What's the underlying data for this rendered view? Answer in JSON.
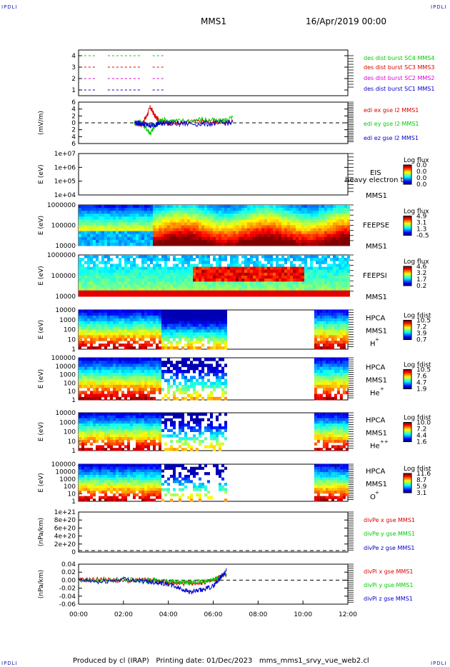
{
  "header": {
    "corner_label": "IPDLI",
    "mission": "MMS1",
    "datetime": "16/Apr/2019 00:00"
  },
  "footer": {
    "produced_by": "Produced by cl (IRAP)",
    "printing_date": "Printing date: 01/Dec/2023",
    "script_name": "mms_mms1_srvy_vue_web2.cl"
  },
  "colors": {
    "sc1": "#0000cc",
    "sc2": "#dd00dd",
    "sc3": "#dd0000",
    "sc4": "#00cc00",
    "x": "#dd0000",
    "y": "#00cc00",
    "z": "#0000cc"
  },
  "chart_data": [
    {
      "type": "line",
      "panel": "burst",
      "ylim": [
        0.5,
        4.5
      ],
      "yticks": [
        "1",
        "2",
        "3",
        "4"
      ],
      "series": [
        {
          "name": "des dist burst SC1 MMS1",
          "level": 1,
          "x": [
            0.25,
            0.7,
            1.3,
            2.7,
            3.3,
            3.8
          ]
        },
        {
          "name": "des dist burst SC2 MMS2",
          "level": 2,
          "x": [
            0.25,
            0.7,
            1.3,
            2.7,
            3.3,
            3.8
          ]
        },
        {
          "name": "des dist burst SC3 MMS3",
          "level": 3,
          "x": [
            0.25,
            0.7,
            1.3,
            2.7,
            3.3,
            3.8
          ]
        },
        {
          "name": "des dist burst SC4 MMS4",
          "level": 4,
          "x": [
            0.25,
            0.7,
            1.3,
            2.7,
            3.3,
            3.8
          ]
        }
      ]
    },
    {
      "type": "line",
      "panel": "edi",
      "ylabel": "(mV/m)",
      "ylim": [
        -6,
        6
      ],
      "yticks": [
        "6",
        "4",
        "2",
        "0",
        "2",
        "4",
        "6"
      ],
      "series": [
        {
          "name": "edi ex gse l2 MMS1",
          "x": [
            2.5,
            2.8,
            3.0,
            3.2,
            3.4,
            3.6,
            3.8,
            4.5,
            5.5,
            6.3,
            6.9
          ],
          "y": [
            0,
            -0.5,
            1.5,
            4.5,
            2.0,
            0.5,
            0.2,
            -0.3,
            0.5,
            0.2,
            0.3
          ]
        },
        {
          "name": "edi ey gse l2 MMS1",
          "x": [
            2.5,
            2.8,
            3.0,
            3.2,
            3.4,
            3.6,
            3.8,
            4.5,
            5.5,
            6.3,
            6.9
          ],
          "y": [
            0,
            0.3,
            -1.5,
            -3.0,
            -1.0,
            0.5,
            0.8,
            0.5,
            1.0,
            0.5,
            1.5
          ]
        },
        {
          "name": "edi ez gse l2 MMS1",
          "x": [
            2.5,
            2.8,
            3.0,
            3.2,
            3.4,
            3.6,
            3.8,
            4.5,
            5.5,
            6.3,
            6.9
          ],
          "y": [
            0,
            -0.2,
            -0.5,
            -0.8,
            -0.5,
            -0.2,
            0,
            -0.2,
            -0.3,
            -0.1,
            0
          ]
        }
      ],
      "reference_line": 0
    },
    {
      "type": "heatmap",
      "panel": "eis",
      "ylabel": "E (eV)",
      "ylim": [
        10000,
        10000000
      ],
      "yticks": [
        "1e+07",
        "1e+06",
        "1e+05",
        "1e+04"
      ],
      "instrument": "EIS",
      "species": "heavy electron to",
      "spacecraft": "MMS1",
      "colorbar_title": "Log flux",
      "colorbar_ticks": [
        "0.0",
        "0.0",
        "0.0",
        "0.0"
      ]
    },
    {
      "type": "heatmap",
      "panel": "feepse",
      "ylabel": "E (eV)",
      "ylim": [
        10000,
        1000000
      ],
      "yticks": [
        "1000000",
        "100000",
        "10000"
      ],
      "instrument": "FEEPSE",
      "spacecraft": "MMS1",
      "colorbar_title": "Log flux",
      "colorbar_ticks": [
        "4.9",
        "3.1",
        "1.3",
        "-0.5"
      ],
      "coverage": [
        [
          0,
          12
        ]
      ]
    },
    {
      "type": "heatmap",
      "panel": "feepsi",
      "ylabel": "E (eV)",
      "ylim": [
        10000,
        1000000
      ],
      "yticks": [
        "1000000",
        "100000",
        "10000"
      ],
      "instrument": "FEEPSI",
      "spacecraft": "MMS1",
      "colorbar_title": "Log flux",
      "colorbar_ticks": [
        "4.6",
        "3.2",
        "1.7",
        "0.2"
      ],
      "coverage": [
        [
          0,
          12
        ]
      ]
    },
    {
      "type": "heatmap",
      "panel": "hpca_h",
      "ylabel": "E (eV)",
      "ylim": [
        1,
        10000
      ],
      "yticks": [
        "10000",
        "1000",
        "100",
        "10",
        "1"
      ],
      "instrument": "HPCA",
      "spacecraft": "MMS1",
      "species_base": "H",
      "species_charge": "+",
      "colorbar_title": "Log fdist",
      "colorbar_ticks": [
        "10.5",
        "7.2",
        "3.9",
        "0.7"
      ],
      "coverage": [
        [
          0,
          6.6
        ],
        [
          10.5,
          12
        ]
      ]
    },
    {
      "type": "heatmap",
      "panel": "hpca_he",
      "ylabel": "E (eV)",
      "ylim": [
        1,
        100000
      ],
      "yticks": [
        "100000",
        "10000",
        "1000",
        "100",
        "10",
        "1"
      ],
      "instrument": "HPCA",
      "spacecraft": "MMS1",
      "species_base": "He",
      "species_charge": "+",
      "colorbar_title": "Log fdist",
      "colorbar_ticks": [
        "10.5",
        "7.6",
        "4.7",
        "1.9"
      ],
      "coverage": [
        [
          0,
          6.6
        ],
        [
          10.5,
          12
        ]
      ]
    },
    {
      "type": "heatmap",
      "panel": "hpca_hepp",
      "ylabel": "E (eV)",
      "ylim": [
        1,
        10000
      ],
      "yticks": [
        "10000",
        "1000",
        "100",
        "10",
        "1"
      ],
      "instrument": "HPCA",
      "spacecraft": "MMS1",
      "species_base": "He",
      "species_charge": "++",
      "colorbar_title": "Log fdist",
      "colorbar_ticks": [
        "10.0",
        "7.2",
        "4.4",
        "1.6"
      ],
      "coverage": [
        [
          0,
          6.6
        ],
        [
          10.5,
          12
        ]
      ]
    },
    {
      "type": "heatmap",
      "panel": "hpca_o",
      "ylabel": "E (eV)",
      "ylim": [
        1,
        100000
      ],
      "yticks": [
        "100000",
        "10000",
        "1000",
        "100",
        "10",
        "1"
      ],
      "instrument": "HPCA",
      "spacecraft": "MMS1",
      "species_base": "O",
      "species_charge": "+",
      "colorbar_title": "Log fdist",
      "colorbar_ticks": [
        "11.6",
        "8.7",
        "5.9",
        "3.1"
      ],
      "coverage": [
        [
          0,
          6.6
        ],
        [
          10.5,
          12
        ]
      ]
    },
    {
      "type": "line",
      "panel": "divpe",
      "ylabel": "(nPa/km)",
      "ylim": [
        0,
        1e+21
      ],
      "yticks": [
        "1e+21",
        "8e+20",
        "6e+20",
        "4e+20",
        "2e+20",
        "0"
      ],
      "series": [
        {
          "name": "divPe x gse MMS1"
        },
        {
          "name": "divPe y gse MMS1"
        },
        {
          "name": "divPe z gse MMS1"
        }
      ],
      "reference_line": 0
    },
    {
      "type": "line",
      "panel": "divpi",
      "ylabel": "(nPa/km)",
      "ylim": [
        -0.06,
        0.04
      ],
      "yticks": [
        "0.04",
        "0.02",
        "0.00",
        "-0.02",
        "-0.04",
        "-0.06"
      ],
      "series": [
        {
          "name": "divPi x gse MMS1",
          "x": [
            0,
            1,
            2,
            3,
            3.5,
            4,
            4.5,
            5,
            5.5,
            6,
            6.3,
            6.6
          ],
          "y": [
            0,
            0.002,
            -0.002,
            0.001,
            -0.002,
            -0.006,
            -0.008,
            -0.008,
            -0.006,
            -0.002,
            0.008,
            0.015
          ]
        },
        {
          "name": "divPi y gse MMS1",
          "x": [
            0,
            1,
            2,
            3,
            3.5,
            4,
            4.5,
            5,
            5.5,
            6,
            6.3,
            6.6
          ],
          "y": [
            0,
            -0.002,
            0.002,
            -0.001,
            0,
            -0.003,
            -0.005,
            -0.006,
            -0.004,
            0,
            0.008,
            0.018
          ]
        },
        {
          "name": "divPi z gse MMS1",
          "x": [
            0,
            1,
            2,
            3,
            3.5,
            4,
            4.5,
            5,
            5.5,
            6,
            6.3,
            6.6
          ],
          "y": [
            0,
            -0.005,
            0.003,
            -0.004,
            -0.005,
            -0.01,
            -0.02,
            -0.03,
            -0.025,
            -0.015,
            0.005,
            0.025
          ]
        }
      ],
      "reference_line": 0
    }
  ],
  "time_axis": {
    "xlim": [
      0,
      12
    ],
    "tick_labels": [
      "00:00",
      "02:00",
      "04:00",
      "06:00",
      "08:00",
      "10:00",
      "12:00"
    ]
  }
}
